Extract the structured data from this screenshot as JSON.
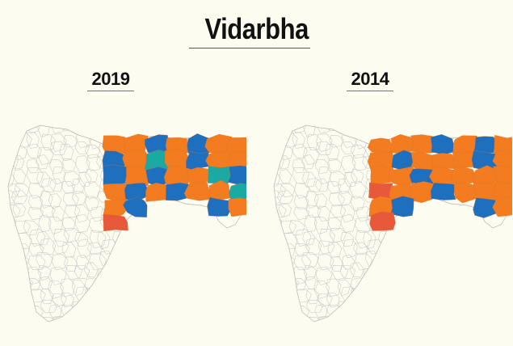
{
  "title": "Vidarbha",
  "maps": [
    {
      "year": "2019",
      "regions": [
        {
          "color": "#f47c20"
        },
        {
          "color": "#f47c20"
        },
        {
          "color": "#1f6fbf"
        },
        {
          "color": "#f47c20"
        },
        {
          "color": "#1f6fbf"
        },
        {
          "color": "#f47c20"
        },
        {
          "color": "#f47c20"
        },
        {
          "color": "#1f6fbf"
        },
        {
          "color": "#f47c20"
        },
        {
          "color": "#1ba9a4"
        },
        {
          "color": "#f47c20"
        },
        {
          "color": "#1f6fbf"
        },
        {
          "color": "#f47c20"
        },
        {
          "color": "#f47c20"
        },
        {
          "color": "#1f6fbf"
        },
        {
          "color": "#f47c20"
        },
        {
          "color": "#1f6fbf"
        },
        {
          "color": "#f47c20"
        },
        {
          "color": "#f47c20"
        },
        {
          "color": "#1ba9a4"
        },
        {
          "color": "#1f6fbf"
        },
        {
          "color": "#f47c20"
        },
        {
          "color": "#1f6fbf"
        },
        {
          "color": "#f47c20"
        },
        {
          "color": "#1f6fbf"
        },
        {
          "color": "#f47c20"
        },
        {
          "color": "#f47c20"
        },
        {
          "color": "#1ba9a4"
        },
        {
          "color": "#f47c20"
        },
        {
          "color": "#1f6fbf"
        },
        {
          "color": "#808080"
        },
        {
          "color": "#808080"
        },
        {
          "color": "#1ba9a4"
        },
        {
          "color": "#1f6fbf"
        },
        {
          "color": "#f47c20"
        },
        {
          "color": "#e8583a"
        },
        {
          "color": "#1f6fbf"
        },
        {
          "color": "#1ba9a4"
        },
        {
          "color": "#f47c20"
        },
        {
          "color": "#1f6fbf"
        },
        {
          "color": "#1ba9a4"
        },
        {
          "color": "#1ba9a4"
        }
      ]
    },
    {
      "year": "2014",
      "regions": [
        {
          "color": "#f47c20"
        },
        {
          "color": "#f47c20"
        },
        {
          "color": "#f47c20"
        },
        {
          "color": "#1f6fbf"
        },
        {
          "color": "#f47c20"
        },
        {
          "color": "#1f6fbf"
        },
        {
          "color": "#f47c20"
        },
        {
          "color": "#f47c20"
        },
        {
          "color": "#1f6fbf"
        },
        {
          "color": "#f47c20"
        },
        {
          "color": "#f47c20"
        },
        {
          "color": "#f47c20"
        },
        {
          "color": "#1f6fbf"
        },
        {
          "color": "#f47c20"
        },
        {
          "color": "#f47c20"
        },
        {
          "color": "#f47c20"
        },
        {
          "color": "#1f6fbf"
        },
        {
          "color": "#f47c20"
        },
        {
          "color": "#f47c20"
        },
        {
          "color": "#f47c20"
        },
        {
          "color": "#f47c20"
        },
        {
          "color": "#e8583a"
        },
        {
          "color": "#f47c20"
        },
        {
          "color": "#f47c20"
        },
        {
          "color": "#1f6fbf"
        },
        {
          "color": "#f47c20"
        },
        {
          "color": "#f47c20"
        },
        {
          "color": "#f47c20"
        },
        {
          "color": "#f47c20"
        },
        {
          "color": "#1f6fbf"
        },
        {
          "color": "#f47c20"
        },
        {
          "color": "#808080"
        },
        {
          "color": "#f47c20"
        },
        {
          "color": "#1f6fbf"
        },
        {
          "color": "#f47c20"
        },
        {
          "color": "#e8583a"
        },
        {
          "color": "#1f6fbf"
        },
        {
          "color": "#1ba9a4"
        },
        {
          "color": "#f47c20"
        },
        {
          "color": "#f47c20"
        },
        {
          "color": "#f47c20"
        },
        {
          "color": "#f47c20"
        }
      ]
    }
  ],
  "colors": {
    "background": "#fdfcf0",
    "outline": "#c8c8c8",
    "orange": "#f47c20",
    "blue": "#1f6fbf",
    "teal": "#1ba9a4",
    "gray": "#808080",
    "red_orange": "#e8583a"
  }
}
